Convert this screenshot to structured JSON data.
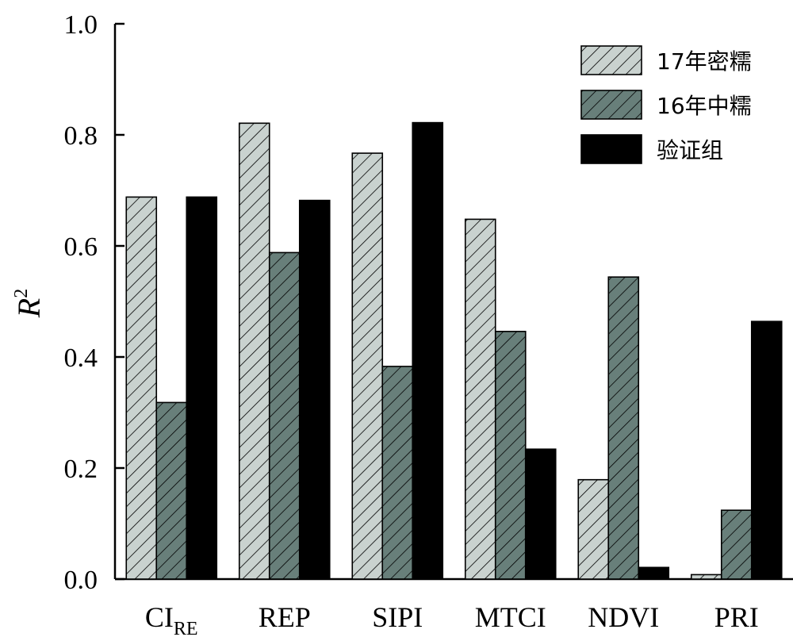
{
  "chart_data": {
    "type": "bar",
    "ylabel": "R",
    "ylabel_superscript": "2",
    "ylim": [
      0,
      1.0
    ],
    "yticks": [
      "0.0",
      "0.2",
      "0.4",
      "0.6",
      "0.8",
      "1.0"
    ],
    "categories": [
      {
        "main": "CI",
        "sub": "RE"
      },
      {
        "main": "REP",
        "sub": ""
      },
      {
        "main": "SIPI",
        "sub": ""
      },
      {
        "main": "MTCI",
        "sub": ""
      },
      {
        "main": "NDVI",
        "sub": ""
      },
      {
        "main": "PRI",
        "sub": ""
      }
    ],
    "series": [
      {
        "name": "17年密糯",
        "color": "#c9d2cf",
        "pattern": "hatch",
        "values": [
          0.688,
          0.821,
          0.767,
          0.648,
          0.179,
          0.008
        ]
      },
      {
        "name": "16年中糯",
        "color": "#687f7a",
        "pattern": "hatch",
        "values": [
          0.318,
          0.588,
          0.383,
          0.446,
          0.544,
          0.124
        ]
      },
      {
        "name": "验证组",
        "color": "#000000",
        "pattern": "solid",
        "values": [
          0.688,
          0.682,
          0.822,
          0.234,
          0.021,
          0.464
        ]
      }
    ],
    "legend_position": "top-right",
    "grid": false
  }
}
